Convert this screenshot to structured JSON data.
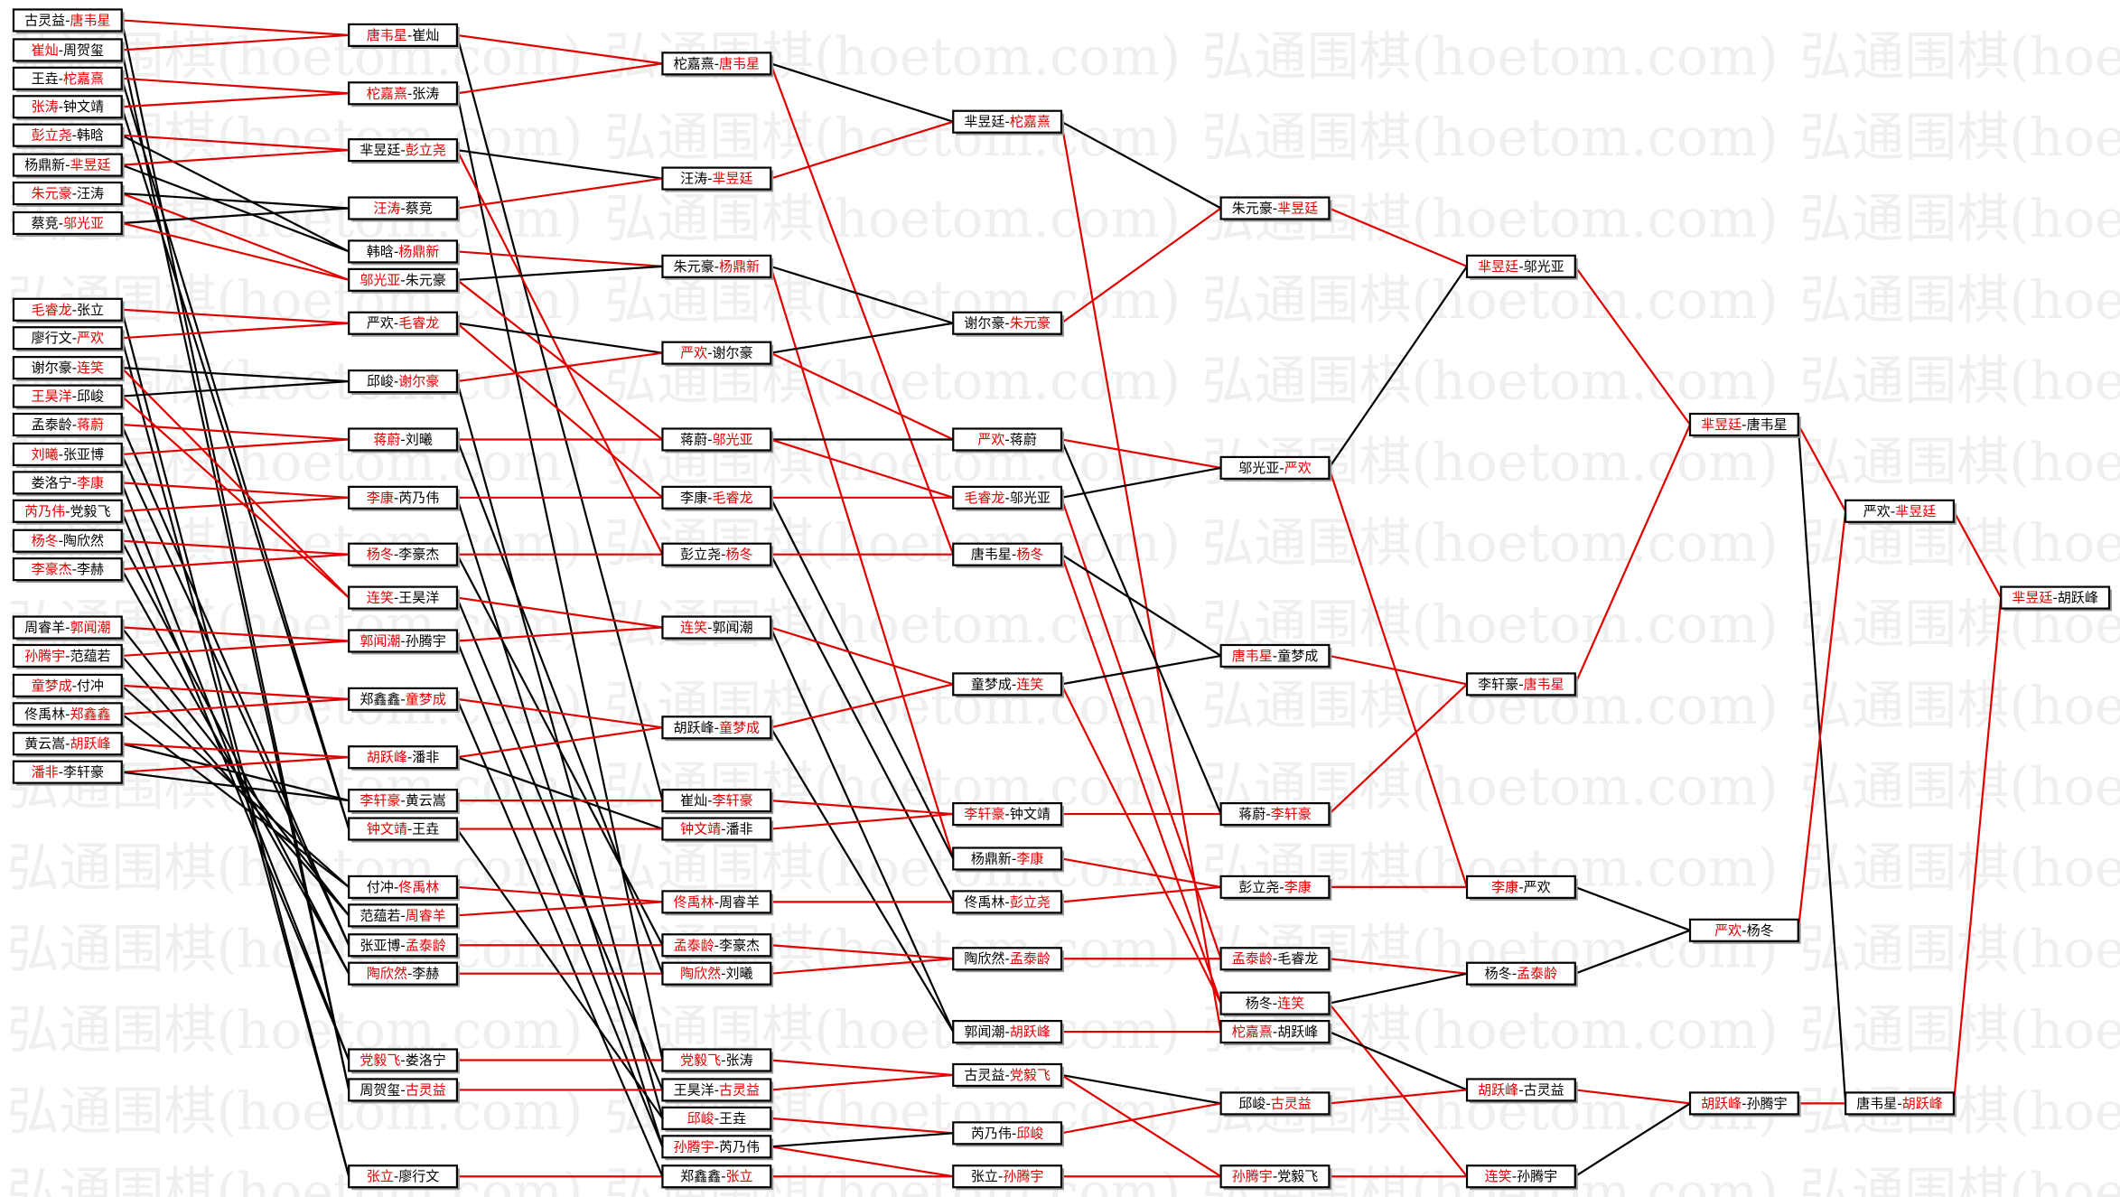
{
  "watermark": "弘通围棋(hoetom.com)",
  "separator": "-",
  "rounds": [
    [
      {
        "players": [
          "古灵益",
          "唐韦星"
        ],
        "colors": [
          "#000000",
          "#e00000"
        ]
      },
      {
        "players": [
          "崔灿",
          "周贺玺"
        ],
        "colors": [
          "#e00000",
          "#000000"
        ]
      },
      {
        "players": [
          "王垚",
          "柁嘉熹"
        ],
        "colors": [
          "#000000",
          "#e00000"
        ]
      },
      {
        "players": [
          "张涛",
          "钟文靖"
        ],
        "colors": [
          "#e00000",
          "#000000"
        ]
      },
      {
        "players": [
          "彭立尧",
          "韩晗"
        ],
        "colors": [
          "#e00000",
          "#000000"
        ]
      },
      {
        "players": [
          "杨鼎新",
          "芈昱廷"
        ],
        "colors": [
          "#000000",
          "#e00000"
        ]
      },
      {
        "players": [
          "朱元豪",
          "汪涛"
        ],
        "colors": [
          "#e00000",
          "#000000"
        ]
      },
      {
        "players": [
          "蔡竞",
          "邬光亚"
        ],
        "colors": [
          "#000000",
          "#e00000"
        ]
      },
      {
        "players": [
          "毛睿龙",
          "张立"
        ],
        "colors": [
          "#e00000",
          "#000000"
        ]
      },
      {
        "players": [
          "廖行文",
          "严欢"
        ],
        "colors": [
          "#000000",
          "#e00000"
        ]
      },
      {
        "players": [
          "谢尔豪",
          "连笑"
        ],
        "colors": [
          "#000000",
          "#e00000"
        ]
      },
      {
        "players": [
          "王昊洋",
          "邱峻"
        ],
        "colors": [
          "#e00000",
          "#000000"
        ]
      },
      {
        "players": [
          "孟泰龄",
          "蒋蔚"
        ],
        "colors": [
          "#000000",
          "#e00000"
        ]
      },
      {
        "players": [
          "刘曦",
          "张亚博"
        ],
        "colors": [
          "#e00000",
          "#000000"
        ]
      },
      {
        "players": [
          "娄洛宁",
          "李康"
        ],
        "colors": [
          "#000000",
          "#e00000"
        ]
      },
      {
        "players": [
          "芮乃伟",
          "党毅飞"
        ],
        "colors": [
          "#e00000",
          "#000000"
        ]
      },
      {
        "players": [
          "杨冬",
          "陶欣然"
        ],
        "colors": [
          "#e00000",
          "#000000"
        ]
      },
      {
        "players": [
          "李豪杰",
          "李赫"
        ],
        "colors": [
          "#e00000",
          "#000000"
        ]
      },
      {
        "players": [
          "周睿羊",
          "郭闻潮"
        ],
        "colors": [
          "#000000",
          "#e00000"
        ]
      },
      {
        "players": [
          "孙腾宇",
          "范蕴若"
        ],
        "colors": [
          "#e00000",
          "#000000"
        ]
      },
      {
        "players": [
          "童梦成",
          "付冲"
        ],
        "colors": [
          "#e00000",
          "#000000"
        ]
      },
      {
        "players": [
          "佟禹林",
          "郑鑫鑫"
        ],
        "colors": [
          "#000000",
          "#e00000"
        ]
      },
      {
        "players": [
          "黄云嵩",
          "胡跃峰"
        ],
        "colors": [
          "#000000",
          "#e00000"
        ]
      },
      {
        "players": [
          "潘非",
          "李轩豪"
        ],
        "colors": [
          "#e00000",
          "#000000"
        ]
      }
    ],
    [
      {
        "players": [
          "唐韦星",
          "崔灿"
        ],
        "colors": [
          "#e00000",
          "#000000"
        ]
      },
      {
        "players": [
          "柁嘉熹",
          "张涛"
        ],
        "colors": [
          "#e00000",
          "#000000"
        ]
      },
      {
        "players": [
          "芈昱廷",
          "彭立尧"
        ],
        "colors": [
          "#000000",
          "#e00000"
        ]
      },
      {
        "players": [
          "汪涛",
          "蔡竞"
        ],
        "colors": [
          "#e00000",
          "#000000"
        ]
      },
      {
        "players": [
          "韩晗",
          "杨鼎新"
        ],
        "colors": [
          "#000000",
          "#e00000"
        ]
      },
      {
        "players": [
          "邬光亚",
          "朱元豪"
        ],
        "colors": [
          "#e00000",
          "#000000"
        ]
      },
      {
        "players": [
          "严欢",
          "毛睿龙"
        ],
        "colors": [
          "#000000",
          "#e00000"
        ]
      },
      {
        "players": [
          "邱峻",
          "谢尔豪"
        ],
        "colors": [
          "#000000",
          "#e00000"
        ]
      },
      {
        "players": [
          "蒋蔚",
          "刘曦"
        ],
        "colors": [
          "#e00000",
          "#000000"
        ]
      },
      {
        "players": [
          "李康",
          "芮乃伟"
        ],
        "colors": [
          "#e00000",
          "#000000"
        ]
      },
      {
        "players": [
          "杨冬",
          "李豪杰"
        ],
        "colors": [
          "#e00000",
          "#000000"
        ]
      },
      {
        "players": [
          "连笑",
          "王昊洋"
        ],
        "colors": [
          "#e00000",
          "#000000"
        ]
      },
      {
        "players": [
          "郭闻潮",
          "孙腾宇"
        ],
        "colors": [
          "#e00000",
          "#000000"
        ]
      },
      {
        "players": [
          "郑鑫鑫",
          "童梦成"
        ],
        "colors": [
          "#000000",
          "#e00000"
        ]
      },
      {
        "players": [
          "胡跃峰",
          "潘非"
        ],
        "colors": [
          "#e00000",
          "#000000"
        ]
      },
      {
        "players": [
          "李轩豪",
          "黄云嵩"
        ],
        "colors": [
          "#e00000",
          "#000000"
        ]
      },
      {
        "players": [
          "钟文靖",
          "王垚"
        ],
        "colors": [
          "#e00000",
          "#000000"
        ]
      },
      {
        "players": [
          "付冲",
          "佟禹林"
        ],
        "colors": [
          "#000000",
          "#e00000"
        ]
      },
      {
        "players": [
          "范蕴若",
          "周睿羊"
        ],
        "colors": [
          "#000000",
          "#e00000"
        ]
      },
      {
        "players": [
          "张亚博",
          "孟泰龄"
        ],
        "colors": [
          "#000000",
          "#e00000"
        ]
      },
      {
        "players": [
          "陶欣然",
          "李赫"
        ],
        "colors": [
          "#e00000",
          "#000000"
        ]
      },
      {
        "players": [
          "党毅飞",
          "娄洛宁"
        ],
        "colors": [
          "#e00000",
          "#000000"
        ]
      },
      {
        "players": [
          "周贺玺",
          "古灵益"
        ],
        "colors": [
          "#000000",
          "#e00000"
        ]
      },
      {
        "players": [
          "张立",
          "廖行文"
        ],
        "colors": [
          "#e00000",
          "#000000"
        ]
      }
    ],
    [
      {
        "players": [
          "柁嘉熹",
          "唐韦星"
        ],
        "colors": [
          "#000000",
          "#e00000"
        ]
      },
      {
        "players": [
          "汪涛",
          "芈昱廷"
        ],
        "colors": [
          "#000000",
          "#e00000"
        ]
      },
      {
        "players": [
          "朱元豪",
          "杨鼎新"
        ],
        "colors": [
          "#000000",
          "#e00000"
        ]
      },
      {
        "players": [
          "严欢",
          "谢尔豪"
        ],
        "colors": [
          "#e00000",
          "#000000"
        ]
      },
      {
        "players": [
          "蒋蔚",
          "邬光亚"
        ],
        "colors": [
          "#000000",
          "#e00000"
        ]
      },
      {
        "players": [
          "李康",
          "毛睿龙"
        ],
        "colors": [
          "#000000",
          "#e00000"
        ]
      },
      {
        "players": [
          "彭立尧",
          "杨冬"
        ],
        "colors": [
          "#000000",
          "#e00000"
        ]
      },
      {
        "players": [
          "连笑",
          "郭闻潮"
        ],
        "colors": [
          "#e00000",
          "#000000"
        ]
      },
      {
        "players": [
          "胡跃峰",
          "童梦成"
        ],
        "colors": [
          "#000000",
          "#e00000"
        ]
      },
      {
        "players": [
          "崔灿",
          "李轩豪"
        ],
        "colors": [
          "#000000",
          "#e00000"
        ]
      },
      {
        "players": [
          "钟文靖",
          "潘非"
        ],
        "colors": [
          "#e00000",
          "#000000"
        ]
      },
      {
        "players": [
          "佟禹林",
          "周睿羊"
        ],
        "colors": [
          "#e00000",
          "#000000"
        ]
      },
      {
        "players": [
          "孟泰龄",
          "李豪杰"
        ],
        "colors": [
          "#e00000",
          "#000000"
        ]
      },
      {
        "players": [
          "陶欣然",
          "刘曦"
        ],
        "colors": [
          "#e00000",
          "#000000"
        ]
      },
      {
        "players": [
          "党毅飞",
          "张涛"
        ],
        "colors": [
          "#e00000",
          "#000000"
        ]
      },
      {
        "players": [
          "王昊洋",
          "古灵益"
        ],
        "colors": [
          "#000000",
          "#e00000"
        ]
      },
      {
        "players": [
          "邱峻",
          "王垚"
        ],
        "colors": [
          "#e00000",
          "#000000"
        ]
      },
      {
        "players": [
          "孙腾宇",
          "芮乃伟"
        ],
        "colors": [
          "#e00000",
          "#000000"
        ]
      },
      {
        "players": [
          "郑鑫鑫",
          "张立"
        ],
        "colors": [
          "#000000",
          "#e00000"
        ]
      }
    ],
    [
      {
        "players": [
          "芈昱廷",
          "柁嘉熹"
        ],
        "colors": [
          "#000000",
          "#e00000"
        ]
      },
      {
        "players": [
          "谢尔豪",
          "朱元豪"
        ],
        "colors": [
          "#000000",
          "#e00000"
        ]
      },
      {
        "players": [
          "严欢",
          "蒋蔚"
        ],
        "colors": [
          "#e00000",
          "#000000"
        ]
      },
      {
        "players": [
          "毛睿龙",
          "邬光亚"
        ],
        "colors": [
          "#e00000",
          "#000000"
        ]
      },
      {
        "players": [
          "唐韦星",
          "杨冬"
        ],
        "colors": [
          "#000000",
          "#e00000"
        ]
      },
      {
        "players": [
          "童梦成",
          "连笑"
        ],
        "colors": [
          "#000000",
          "#e00000"
        ]
      },
      {
        "players": [
          "李轩豪",
          "钟文靖"
        ],
        "colors": [
          "#e00000",
          "#000000"
        ]
      },
      {
        "players": [
          "杨鼎新",
          "李康"
        ],
        "colors": [
          "#000000",
          "#e00000"
        ]
      },
      {
        "players": [
          "佟禹林",
          "彭立尧"
        ],
        "colors": [
          "#000000",
          "#e00000"
        ]
      },
      {
        "players": [
          "陶欣然",
          "孟泰龄"
        ],
        "colors": [
          "#000000",
          "#e00000"
        ]
      },
      {
        "players": [
          "郭闻潮",
          "胡跃峰"
        ],
        "colors": [
          "#000000",
          "#e00000"
        ]
      },
      {
        "players": [
          "古灵益",
          "党毅飞"
        ],
        "colors": [
          "#000000",
          "#e00000"
        ]
      },
      {
        "players": [
          "芮乃伟",
          "邱峻"
        ],
        "colors": [
          "#000000",
          "#e00000"
        ]
      },
      {
        "players": [
          "张立",
          "孙腾宇"
        ],
        "colors": [
          "#000000",
          "#e00000"
        ]
      }
    ],
    [
      {
        "players": [
          "朱元豪",
          "芈昱廷"
        ],
        "colors": [
          "#000000",
          "#e00000"
        ]
      },
      {
        "players": [
          "邬光亚",
          "严欢"
        ],
        "colors": [
          "#000000",
          "#e00000"
        ]
      },
      {
        "players": [
          "唐韦星",
          "童梦成"
        ],
        "colors": [
          "#e00000",
          "#000000"
        ]
      },
      {
        "players": [
          "蒋蔚",
          "李轩豪"
        ],
        "colors": [
          "#000000",
          "#e00000"
        ]
      },
      {
        "players": [
          "彭立尧",
          "李康"
        ],
        "colors": [
          "#000000",
          "#e00000"
        ]
      },
      {
        "players": [
          "孟泰龄",
          "毛睿龙"
        ],
        "colors": [
          "#e00000",
          "#000000"
        ]
      },
      {
        "players": [
          "杨冬",
          "连笑"
        ],
        "colors": [
          "#000000",
          "#e00000"
        ]
      },
      {
        "players": [
          "柁嘉熹",
          "胡跃峰"
        ],
        "colors": [
          "#e00000",
          "#000000"
        ]
      },
      {
        "players": [
          "邱峻",
          "古灵益"
        ],
        "colors": [
          "#000000",
          "#e00000"
        ]
      },
      {
        "players": [
          "孙腾宇",
          "党毅飞"
        ],
        "colors": [
          "#e00000",
          "#000000"
        ]
      }
    ],
    [
      {
        "players": [
          "芈昱廷",
          "邬光亚"
        ],
        "colors": [
          "#e00000",
          "#000000"
        ]
      },
      {
        "players": [
          "李轩豪",
          "唐韦星"
        ],
        "colors": [
          "#000000",
          "#e00000"
        ]
      },
      {
        "players": [
          "李康",
          "严欢"
        ],
        "colors": [
          "#e00000",
          "#000000"
        ]
      },
      {
        "players": [
          "杨冬",
          "孟泰龄"
        ],
        "colors": [
          "#000000",
          "#e00000"
        ]
      },
      {
        "players": [
          "胡跃峰",
          "古灵益"
        ],
        "colors": [
          "#e00000",
          "#000000"
        ]
      },
      {
        "players": [
          "连笑",
          "孙腾宇"
        ],
        "colors": [
          "#e00000",
          "#000000"
        ]
      }
    ],
    [
      {
        "players": [
          "芈昱廷",
          "唐韦星"
        ],
        "colors": [
          "#e00000",
          "#000000"
        ]
      },
      {
        "players": [
          "严欢",
          "杨冬"
        ],
        "colors": [
          "#e00000",
          "#000000"
        ]
      },
      {
        "players": [
          "胡跃峰",
          "孙腾宇"
        ],
        "colors": [
          "#e00000",
          "#000000"
        ]
      }
    ],
    [
      {
        "players": [
          "严欢",
          "芈昱廷"
        ],
        "colors": [
          "#000000",
          "#e00000"
        ]
      },
      {
        "players": [
          "唐韦星",
          "胡跃峰"
        ],
        "colors": [
          "#000000",
          "#e00000"
        ]
      }
    ],
    [
      {
        "players": [
          "芈昱廷",
          "胡跃峰"
        ],
        "colors": [
          "#e00000",
          "#000000"
        ]
      }
    ]
  ]
}
